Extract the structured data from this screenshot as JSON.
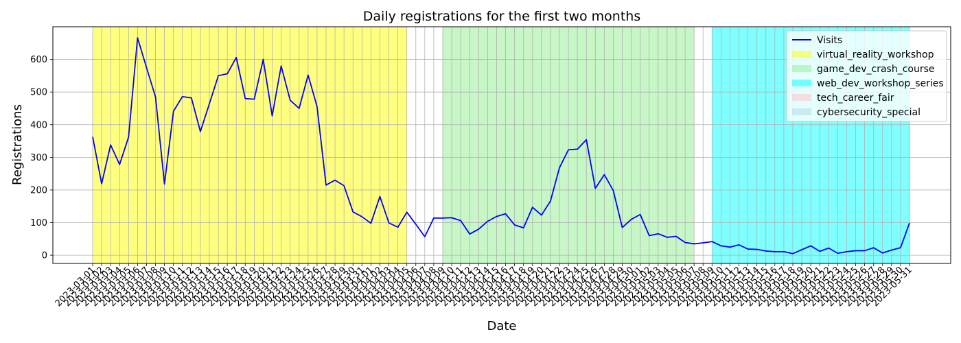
{
  "chart_data": {
    "type": "line",
    "title": "Daily registrations for the first two months",
    "xlabel": "Date",
    "ylabel": "Registrations",
    "ylim": [
      -25,
      700
    ],
    "yticks": [
      0,
      100,
      200,
      300,
      400,
      500,
      600
    ],
    "grid": true,
    "legend_position": "top-right",
    "x": [
      "2023-03-01",
      "2023-03-02",
      "2023-03-03",
      "2023-03-04",
      "2023-03-05",
      "2023-03-06",
      "2023-03-07",
      "2023-03-08",
      "2023-03-09",
      "2023-03-10",
      "2023-03-11",
      "2023-03-12",
      "2023-03-13",
      "2023-03-14",
      "2023-03-15",
      "2023-03-16",
      "2023-03-17",
      "2023-03-18",
      "2023-03-19",
      "2023-03-20",
      "2023-03-21",
      "2023-03-22",
      "2023-03-23",
      "2023-03-24",
      "2023-03-25",
      "2023-03-26",
      "2023-03-27",
      "2023-03-28",
      "2023-03-29",
      "2023-03-30",
      "2023-03-31",
      "2023-04-01",
      "2023-04-02",
      "2023-04-03",
      "2023-04-04",
      "2023-04-05",
      "2023-04-06",
      "2023-04-07",
      "2023-04-08",
      "2023-04-09",
      "2023-04-10",
      "2023-04-11",
      "2023-04-12",
      "2023-04-13",
      "2023-04-14",
      "2023-04-15",
      "2023-04-16",
      "2023-04-17",
      "2023-04-18",
      "2023-04-19",
      "2023-04-20",
      "2023-04-21",
      "2023-04-22",
      "2023-04-23",
      "2023-04-24",
      "2023-04-25",
      "2023-04-26",
      "2023-04-27",
      "2023-04-28",
      "2023-04-29",
      "2023-04-30",
      "2023-05-01",
      "2023-05-02",
      "2023-05-03",
      "2023-05-04",
      "2023-05-05",
      "2023-05-06",
      "2023-05-07",
      "2023-05-08",
      "2023-05-09",
      "2023-05-10",
      "2023-05-11",
      "2023-05-12",
      "2023-05-13",
      "2023-05-14",
      "2023-05-15",
      "2023-05-16",
      "2023-05-17",
      "2023-05-18",
      "2023-05-19",
      "2023-05-20",
      "2023-05-21",
      "2023-05-22",
      "2023-05-23",
      "2023-05-24",
      "2023-05-25",
      "2023-05-26",
      "2023-05-27",
      "2023-05-28",
      "2023-05-29",
      "2023-05-30",
      "2023-05-31"
    ],
    "series": [
      {
        "name": "Visits",
        "color": "#0000ff",
        "values": [
          363,
          219,
          338,
          278,
          362,
          666,
          575,
          485,
          218,
          441,
          486,
          482,
          379,
          464,
          550,
          556,
          606,
          480,
          478,
          600,
          427,
          580,
          475,
          450,
          552,
          455,
          215,
          230,
          213,
          133,
          118,
          98,
          180,
          99,
          86,
          132,
          95,
          57,
          114,
          114,
          115,
          106,
          65,
          80,
          104,
          119,
          127,
          93,
          84,
          147,
          123,
          166,
          268,
          323,
          325,
          354,
          205,
          247,
          198,
          85,
          110,
          125,
          60,
          66,
          55,
          58,
          39,
          35,
          38,
          42,
          29,
          25,
          32,
          19,
          18,
          13,
          11,
          11,
          5,
          17,
          29,
          12,
          22,
          6,
          11,
          14,
          14,
          23,
          7,
          16,
          23,
          99
        ]
      }
    ],
    "shaded_regions": [
      {
        "name": "virtual_reality_workshop",
        "start": "2023-03-01",
        "end": "2023-04-05",
        "color": "#ffff00",
        "alpha": 0.5
      },
      {
        "name": "game_dev_crash_course",
        "start": "2023-04-09",
        "end": "2023-05-07",
        "color": "#90ee90",
        "alpha": 0.5
      },
      {
        "name": "web_dev_workshop_series",
        "start": "2023-05-09",
        "end": "2023-05-31",
        "color": "#00ffff",
        "alpha": 0.5
      },
      {
        "name": "tech_career_fair",
        "start": null,
        "end": null,
        "color": "#ffc0cb",
        "alpha": 0.5
      },
      {
        "name": "cybersecurity_special",
        "start": null,
        "end": null,
        "color": "#add8e6",
        "alpha": 0.5
      }
    ]
  }
}
